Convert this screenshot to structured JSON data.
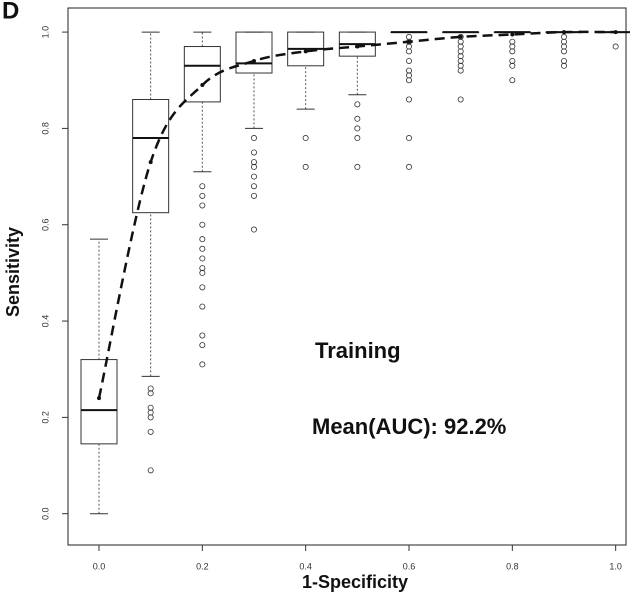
{
  "chart_data": {
    "type": "box",
    "panel_label": "D",
    "x_label": "1-Specificity",
    "y_label": "Sensitivity",
    "annotations": [
      "Training",
      "Mean(AUC): 92.2%"
    ],
    "xlim": [
      -0.06,
      1.02
    ],
    "ylim": [
      -0.065,
      1.05
    ],
    "xticks": [
      {
        "value": 0,
        "label": "0.0"
      },
      0.2,
      0.4,
      0.6,
      0.8,
      {
        "value": 1,
        "label": "1.0"
      }
    ],
    "yticks": [
      {
        "value": 0,
        "label": "0.0"
      },
      0.2,
      0.4,
      0.6,
      0.8,
      {
        "value": 1,
        "label": "1.0"
      }
    ],
    "boxes": [
      {
        "x": 0,
        "whislo": 0,
        "q1": 0.145,
        "med": 0.215,
        "q3": 0.32,
        "whishi": 0.57,
        "fliers": []
      },
      {
        "x": 0.1,
        "whislo": 0.285,
        "q1": 0.625,
        "med": 0.78,
        "q3": 0.86,
        "whishi": 1,
        "fliers": [
          0.26,
          0.25,
          0.22,
          0.21,
          0.2,
          0.17,
          0.09
        ]
      },
      {
        "x": 0.2,
        "whislo": 0.71,
        "q1": 0.855,
        "med": 0.93,
        "q3": 0.97,
        "whishi": 1,
        "fliers": [
          0.68,
          0.66,
          0.64,
          0.6,
          0.57,
          0.55,
          0.53,
          0.51,
          0.5,
          0.47,
          0.43,
          0.37,
          0.35,
          0.31
        ]
      },
      {
        "x": 0.3,
        "whislo": 0.8,
        "q1": 0.915,
        "med": 0.935,
        "q3": 1,
        "whishi": 1,
        "fliers": [
          0.78,
          0.75,
          0.73,
          0.72,
          0.7,
          0.68,
          0.66,
          0.59
        ]
      },
      {
        "x": 0.4,
        "whislo": 0.84,
        "q1": 0.93,
        "med": 0.965,
        "q3": 1,
        "whishi": 1,
        "fliers": [
          0.78,
          0.72
        ]
      },
      {
        "x": 0.5,
        "whislo": 0.87,
        "q1": 0.95,
        "med": 0.975,
        "q3": 1,
        "whishi": 1,
        "fliers": [
          0.85,
          0.82,
          0.8,
          0.78,
          0.72
        ]
      },
      {
        "x": 0.6,
        "whislo": 1,
        "q1": 1,
        "med": 1,
        "q3": 1,
        "whishi": 1,
        "fliers": [
          0.99,
          0.98,
          0.97,
          0.96,
          0.94,
          0.92,
          0.91,
          0.9,
          0.86,
          0.78,
          0.72
        ]
      },
      {
        "x": 0.7,
        "whislo": 1,
        "q1": 1,
        "med": 1,
        "q3": 1,
        "whishi": 1,
        "fliers": [
          0.99,
          0.98,
          0.97,
          0.96,
          0.95,
          0.94,
          0.93,
          0.92,
          0.86
        ]
      },
      {
        "x": 0.8,
        "whislo": 1,
        "q1": 1,
        "med": 1,
        "q3": 1,
        "whishi": 1,
        "fliers": [
          0.98,
          0.97,
          0.96,
          0.94,
          0.93,
          0.9
        ]
      },
      {
        "x": 0.9,
        "whislo": 1,
        "q1": 1,
        "med": 1,
        "q3": 1,
        "whishi": 1,
        "fliers": [
          0.99,
          0.98,
          0.97,
          0.96,
          0.94,
          0.93
        ]
      },
      {
        "x": 1,
        "whislo": 1,
        "q1": 1,
        "med": 1,
        "q3": 1,
        "whishi": 1,
        "fliers": [
          0.97
        ]
      }
    ],
    "curve": {
      "x": [
        0,
        0.1,
        0.2,
        0.3,
        0.4,
        0.5,
        0.6,
        0.7,
        0.8,
        0.9,
        1
      ],
      "values": [
        0.24,
        0.73,
        0.89,
        0.94,
        0.96,
        0.97,
        0.98,
        0.99,
        0.995,
        1,
        1
      ],
      "color": "#111"
    }
  }
}
